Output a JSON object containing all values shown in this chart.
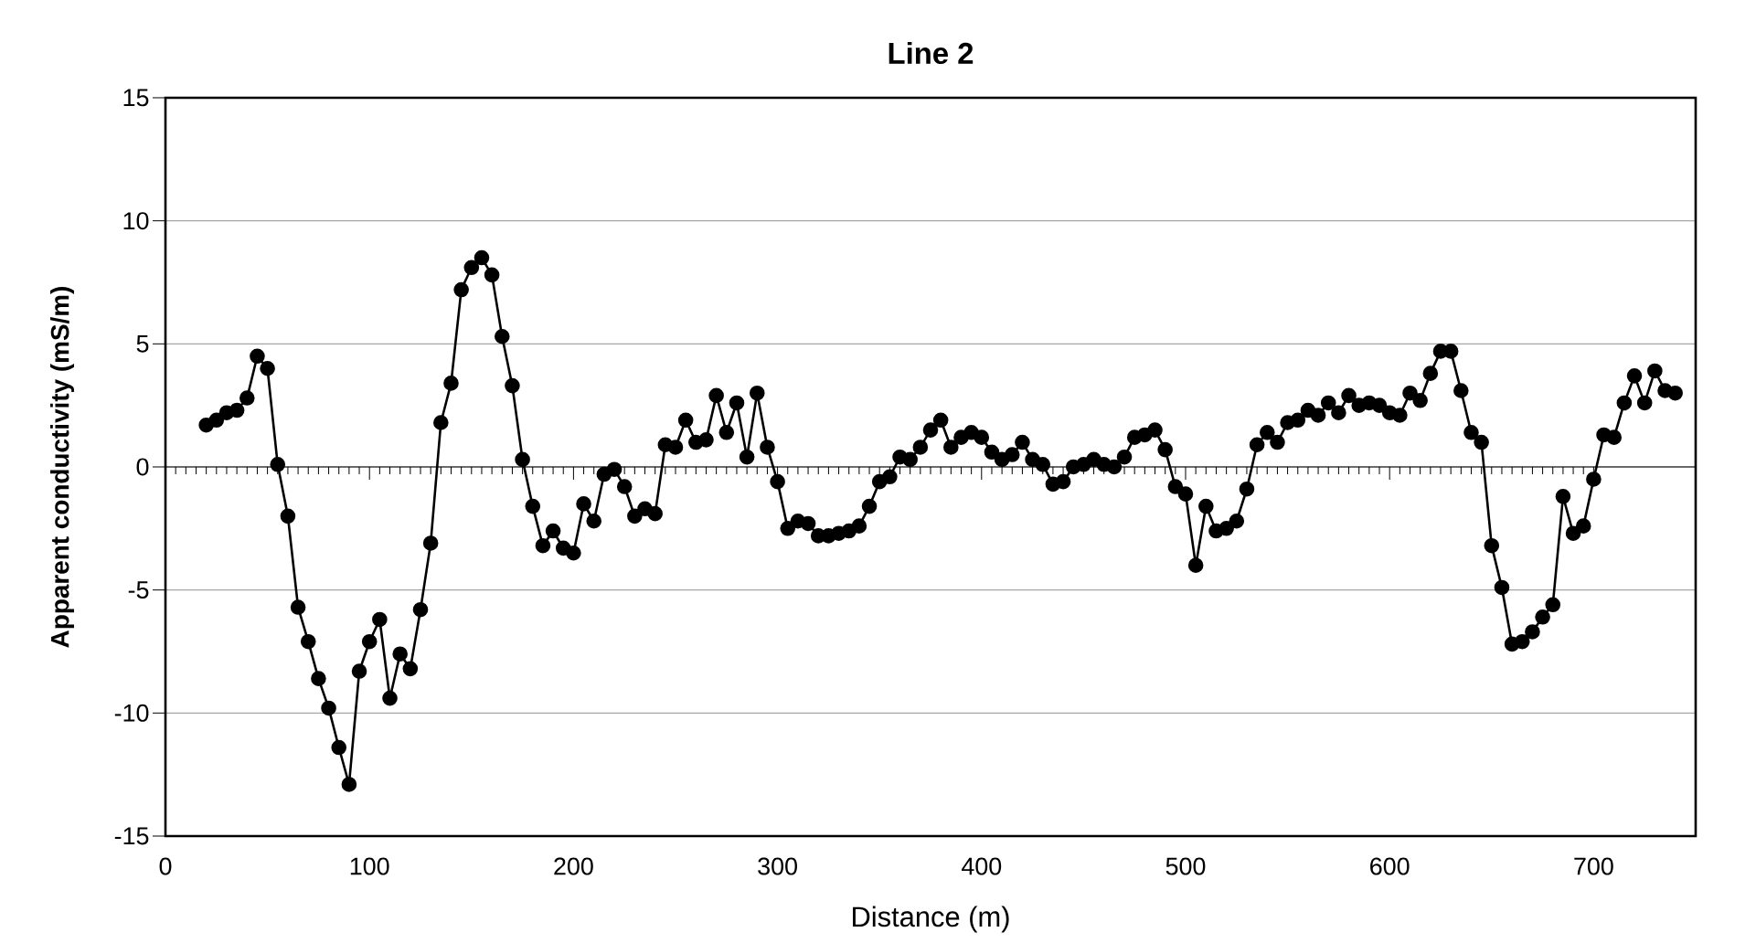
{
  "chart_data": {
    "type": "line",
    "title": "Line 2",
    "xlabel": "Distance (m)",
    "ylabel": "Apparent conductivity (mS/m)",
    "xlim": [
      0,
      750
    ],
    "ylim": [
      -15,
      15
    ],
    "xticks": [
      0,
      100,
      200,
      300,
      400,
      500,
      600,
      700
    ],
    "yticks": [
      -15,
      -10,
      -5,
      0,
      5,
      10,
      15
    ],
    "grid": "y",
    "marker": "circle",
    "line_style": "solid",
    "x": [
      20,
      25,
      30,
      35,
      40,
      45,
      50,
      55,
      60,
      65,
      70,
      75,
      80,
      85,
      90,
      95,
      100,
      105,
      110,
      115,
      120,
      125,
      130,
      135,
      140,
      145,
      150,
      155,
      160,
      165,
      170,
      175,
      180,
      185,
      190,
      195,
      200,
      205,
      210,
      215,
      220,
      225,
      230,
      235,
      240,
      245,
      250,
      255,
      260,
      265,
      270,
      275,
      280,
      285,
      290,
      295,
      300,
      305,
      310,
      315,
      320,
      325,
      330,
      335,
      340,
      345,
      350,
      355,
      360,
      365,
      370,
      375,
      380,
      385,
      390,
      395,
      400,
      405,
      410,
      415,
      420,
      425,
      430,
      435,
      440,
      445,
      450,
      455,
      460,
      465,
      470,
      475,
      480,
      485,
      490,
      495,
      500,
      505,
      510,
      515,
      520,
      525,
      530,
      535,
      540,
      545,
      550,
      555,
      560,
      565,
      570,
      575,
      580,
      585,
      590,
      595,
      600,
      605,
      610,
      615,
      620,
      625,
      630,
      635,
      640,
      645,
      650,
      655,
      660,
      665,
      670,
      675,
      680,
      685,
      690,
      695,
      700,
      705,
      710,
      715,
      720,
      725,
      730,
      735,
      740
    ],
    "series": [
      {
        "color": "#000000",
        "values": [
          1.7,
          1.9,
          2.2,
          2.3,
          2.8,
          4.5,
          4.0,
          0.1,
          -2.0,
          -5.7,
          -7.1,
          -8.6,
          -9.8,
          -11.4,
          -12.9,
          -8.3,
          -7.1,
          -6.2,
          -9.4,
          -7.6,
          -8.2,
          -5.8,
          -3.1,
          1.8,
          3.4,
          7.2,
          8.1,
          8.5,
          7.8,
          5.3,
          3.3,
          0.3,
          -1.6,
          -3.2,
          -2.6,
          -3.3,
          -3.5,
          -1.5,
          -2.2,
          -0.3,
          -0.1,
          -0.8,
          -2.0,
          -1.7,
          -1.9,
          0.9,
          0.8,
          1.9,
          1.0,
          1.1,
          2.9,
          1.4,
          2.6,
          0.4,
          3.0,
          0.8,
          -0.6,
          -2.5,
          -2.2,
          -2.3,
          -2.8,
          -2.8,
          -2.7,
          -2.6,
          -2.4,
          -1.6,
          -0.6,
          -0.4,
          0.4,
          0.3,
          0.8,
          1.5,
          1.9,
          0.8,
          1.2,
          1.4,
          1.2,
          0.6,
          0.3,
          0.5,
          1.0,
          0.3,
          0.1,
          -0.7,
          -0.6,
          0.0,
          0.1,
          0.3,
          0.1,
          0.0,
          0.4,
          1.2,
          1.3,
          1.5,
          0.7,
          -0.8,
          -1.1,
          -4.0,
          -1.6,
          -2.6,
          -2.5,
          -2.2,
          -0.9,
          0.9,
          1.4,
          1.0,
          1.8,
          1.9,
          2.3,
          2.1,
          2.6,
          2.2,
          2.9,
          2.5,
          2.6,
          2.5,
          2.2,
          2.1,
          3.0,
          2.7,
          3.8,
          4.7,
          4.7,
          3.1,
          1.4,
          1.0,
          -3.2,
          -4.9,
          -7.2,
          -7.1,
          -6.7,
          -6.1,
          -5.6,
          -1.2,
          -2.7,
          -2.4,
          -0.5,
          1.3,
          1.2,
          2.6,
          3.7,
          2.6,
          3.9,
          3.1,
          3.0
        ]
      }
    ]
  }
}
